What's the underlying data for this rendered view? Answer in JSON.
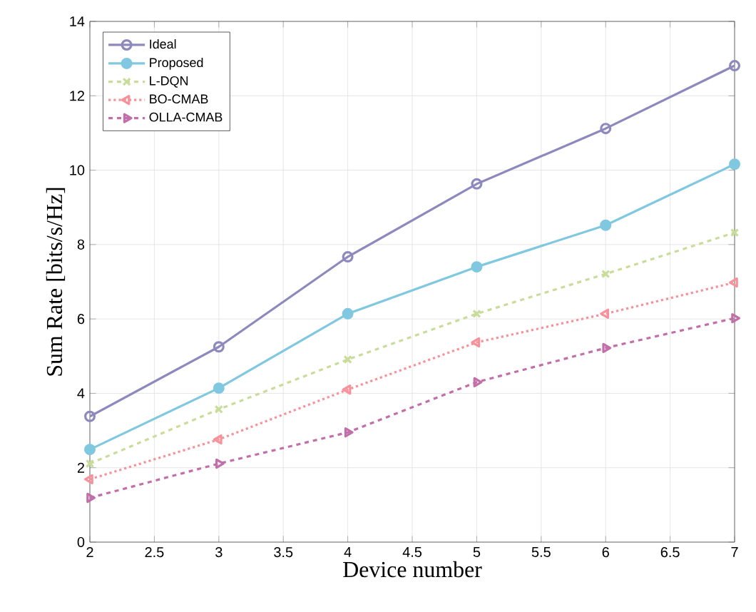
{
  "chart_data": {
    "type": "line",
    "xlabel": "Device number",
    "ylabel": "Sum Rate [bits/s/Hz]",
    "x": [
      2,
      3,
      4,
      5,
      6,
      7
    ],
    "xlim": [
      2,
      7
    ],
    "ylim": [
      0,
      14
    ],
    "xticks": [
      2,
      2.5,
      3,
      3.5,
      4,
      4.5,
      5,
      5.5,
      6,
      6.5,
      7
    ],
    "yticks": [
      0,
      2,
      4,
      6,
      8,
      10,
      12,
      14
    ],
    "grid": true,
    "legend": "top left",
    "series": [
      {
        "name": "Ideal",
        "color": "#8e89bd",
        "marker": "circle",
        "line_style": "solid",
        "values": [
          3.38,
          5.25,
          7.67,
          9.63,
          11.12,
          12.81
        ]
      },
      {
        "name": "Proposed",
        "color": "#80c8e0",
        "marker": "circle",
        "line_style": "solid",
        "values": [
          2.49,
          4.14,
          6.14,
          7.4,
          8.52,
          10.16
        ]
      },
      {
        "name": "L-DQN",
        "color": "#c9dc9a",
        "marker": "cross",
        "line_style": "dashed",
        "values": [
          2.11,
          3.57,
          4.91,
          6.14,
          7.21,
          8.32
        ]
      },
      {
        "name": "BO-CMAB",
        "color": "#f7919a",
        "marker": "triangle",
        "line_style": "dotted",
        "values": [
          1.69,
          2.76,
          4.1,
          5.37,
          6.14,
          6.98
        ]
      },
      {
        "name": "OLLA-CMAB",
        "color": "#c26ea8",
        "marker": "triangle",
        "line_style": "dashed",
        "values": [
          1.19,
          2.11,
          2.95,
          4.3,
          5.22,
          6.02
        ]
      }
    ]
  }
}
